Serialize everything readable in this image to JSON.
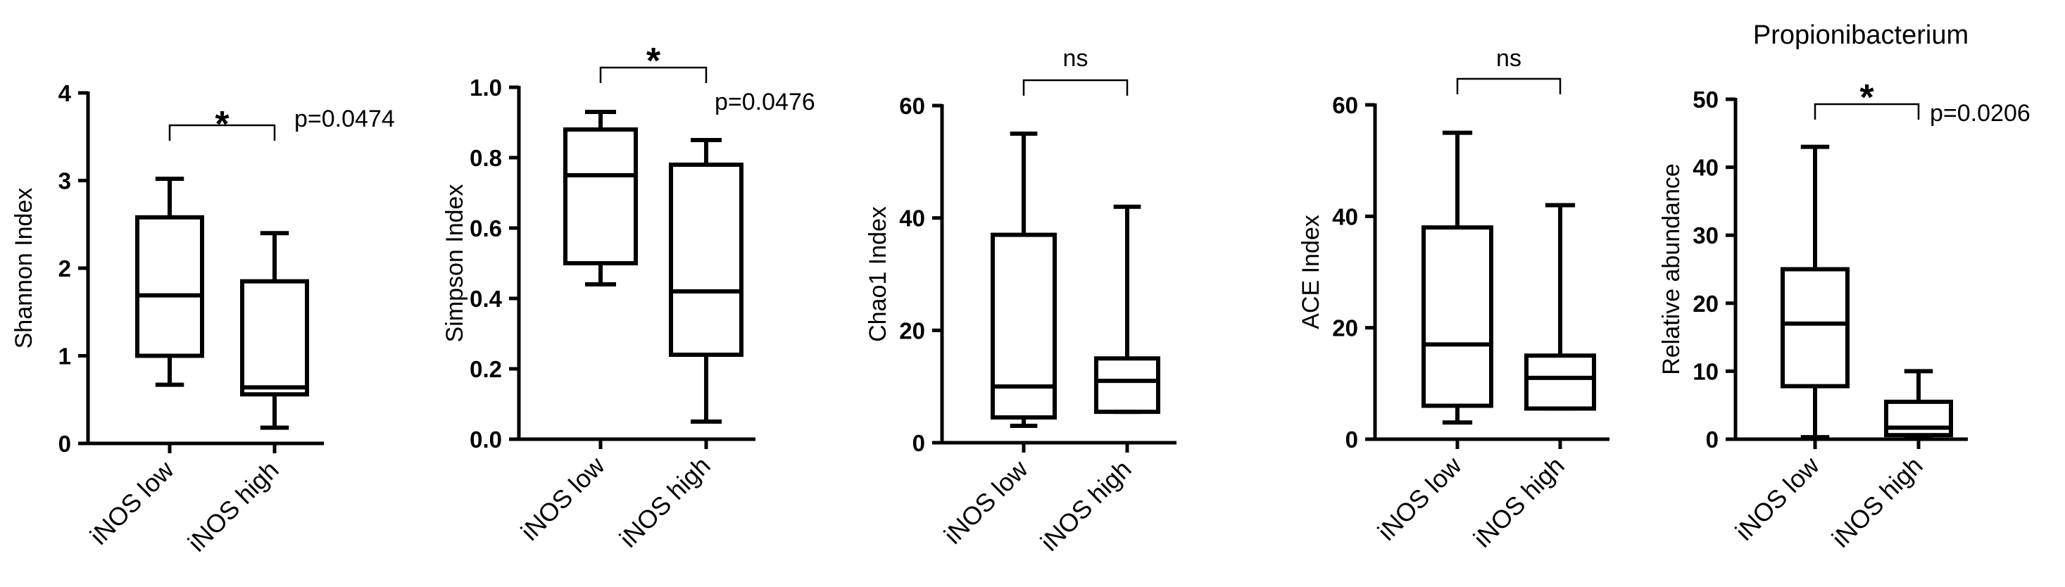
{
  "chart_data": [
    {
      "type": "box",
      "title": "",
      "ylabel": "Shannon Index",
      "ylim": [
        0,
        4
      ],
      "yticks": [
        0,
        1,
        2,
        3,
        4
      ],
      "categories": [
        "iNOS low",
        "iNOS high"
      ],
      "boxes": [
        {
          "min": 0.67,
          "q1": 1.0,
          "median": 1.69,
          "q3": 2.58,
          "max": 3.02
        },
        {
          "min": 0.18,
          "q1": 0.56,
          "median": 0.64,
          "q3": 1.85,
          "max": 2.4
        }
      ],
      "significance": "*",
      "p_value": "p=0.0474"
    },
    {
      "type": "box",
      "title": "",
      "ylabel": "Simpson Index",
      "ylim": [
        0,
        1.0
      ],
      "yticks": [
        0.0,
        0.2,
        0.4,
        0.6,
        0.8,
        1.0
      ],
      "tick_labels": [
        "0.0",
        "0.2",
        "0.4",
        "0.6",
        "0.8",
        "1.0"
      ],
      "categories": [
        "iNOS low",
        "iNOS high"
      ],
      "boxes": [
        {
          "min": 0.44,
          "q1": 0.5,
          "median": 0.75,
          "q3": 0.88,
          "max": 0.93
        },
        {
          "min": 0.05,
          "q1": 0.24,
          "median": 0.42,
          "q3": 0.78,
          "max": 0.85
        }
      ],
      "significance": "*",
      "p_value": "p=0.0476"
    },
    {
      "type": "box",
      "title": "",
      "ylabel": "Chao1 Index",
      "ylim": [
        0,
        60
      ],
      "yticks": [
        0,
        20,
        40,
        60
      ],
      "categories": [
        "iNOS low",
        "iNOS high"
      ],
      "boxes": [
        {
          "min": 3,
          "q1": 4.5,
          "median": 10,
          "q3": 37,
          "max": 55
        },
        {
          "min": 5.5,
          "q1": 5.5,
          "median": 11,
          "q3": 15,
          "max": 42
        }
      ],
      "significance": "ns",
      "p_value": ""
    },
    {
      "type": "box",
      "title": "",
      "ylabel": "ACE Index",
      "ylim": [
        0,
        60
      ],
      "yticks": [
        0,
        20,
        40,
        60
      ],
      "categories": [
        "iNOS low",
        "iNOS high"
      ],
      "boxes": [
        {
          "min": 3,
          "q1": 6,
          "median": 17,
          "q3": 38,
          "max": 55
        },
        {
          "min": 5.5,
          "q1": 5.5,
          "median": 11,
          "q3": 15,
          "max": 42
        }
      ],
      "significance": "ns",
      "p_value": ""
    },
    {
      "type": "box",
      "title": "Propionibacterium",
      "ylabel": "Relative abundance",
      "ylim": [
        0,
        50
      ],
      "yticks": [
        0,
        10,
        20,
        30,
        40,
        50
      ],
      "categories": [
        "iNOS low",
        "iNOS high"
      ],
      "boxes": [
        {
          "min": 0.3,
          "q1": 7.8,
          "median": 17,
          "q3": 25,
          "max": 43
        },
        {
          "min": 0.2,
          "q1": 0.6,
          "median": 1.7,
          "q3": 5.5,
          "max": 10
        }
      ],
      "significance": "*",
      "p_value": "p=0.0206"
    }
  ]
}
